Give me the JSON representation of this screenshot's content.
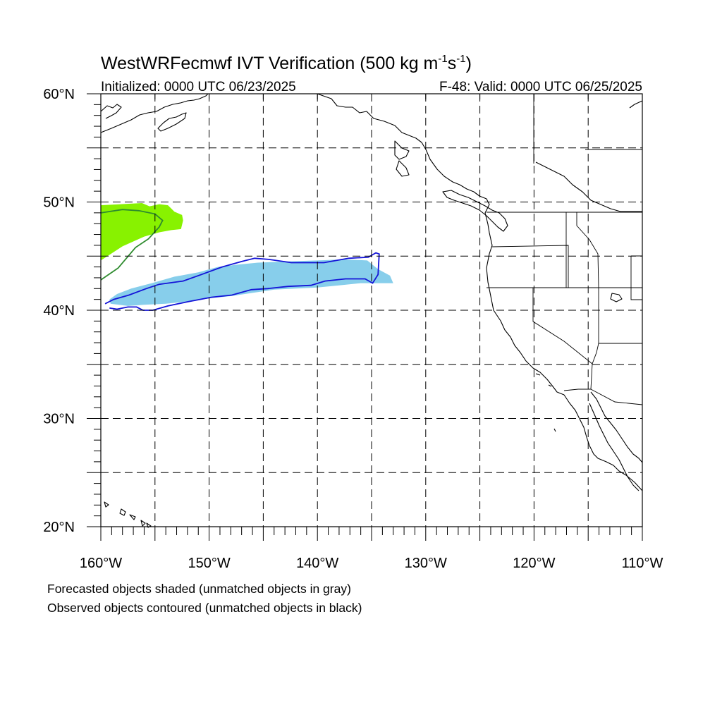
{
  "title": {
    "main": "WestWRFecmwf IVT Verification (500 kg m",
    "exp1": "-1",
    "mid": "s",
    "exp2": "-1",
    "end": ")"
  },
  "subtitle": {
    "left": "Initialized: 0000 UTC 06/23/2025",
    "right": "F-48: Valid: 0000 UTC 06/25/2025"
  },
  "map": {
    "lon_range": [
      -160,
      -110
    ],
    "lat_range": [
      20,
      60
    ],
    "lat_labels": [
      {
        "lat": 60,
        "text": "60°N"
      },
      {
        "lat": 50,
        "text": "50°N"
      },
      {
        "lat": 40,
        "text": "40°N"
      },
      {
        "lat": 30,
        "text": "30°N"
      },
      {
        "lat": 20,
        "text": "20°N"
      }
    ],
    "lon_labels": [
      {
        "lon": -160,
        "text": "160°W"
      },
      {
        "lon": -150,
        "text": "150°W"
      },
      {
        "lon": -140,
        "text": "140°W"
      },
      {
        "lon": -130,
        "text": "130°W"
      },
      {
        "lon": -120,
        "text": "120°W"
      },
      {
        "lon": -110,
        "text": "110°W"
      }
    ],
    "gridlines": "dashed every 5 degrees",
    "objects": [
      {
        "kind": "forecast",
        "color": "#88f200",
        "matched_color": "#2e8b2e",
        "shaded": [
          [
            -160,
            49.7
          ],
          [
            -156.2,
            49.9
          ],
          [
            -155.5,
            49.6
          ],
          [
            -154.6,
            49.8
          ],
          [
            -153.8,
            49.7
          ],
          [
            -153.2,
            49.1
          ],
          [
            -152.5,
            48.8
          ],
          [
            -152.4,
            48.3
          ],
          [
            -152.6,
            47.5
          ],
          [
            -153.5,
            47.4
          ],
          [
            -154.6,
            47.2
          ],
          [
            -156,
            46.8
          ],
          [
            -158,
            45.9
          ],
          [
            -160,
            44.6
          ]
        ],
        "contour": [
          [
            -160,
            49.0
          ],
          [
            -158,
            49.3
          ],
          [
            -156.5,
            49.2
          ],
          [
            -155,
            48.9
          ],
          [
            -154.3,
            48.3
          ],
          [
            -154.6,
            47.7
          ],
          [
            -155.6,
            46.6
          ],
          [
            -156.8,
            45.8
          ],
          [
            -158.4,
            43.9
          ],
          [
            -160,
            42.8
          ]
        ]
      },
      {
        "kind": "forecast",
        "color": "#87ceeb",
        "matched_color": "#1414d8",
        "shaded": [
          [
            -159.2,
            41.0
          ],
          [
            -158.5,
            41.5
          ],
          [
            -157.2,
            42.0
          ],
          [
            -155.3,
            42.5
          ],
          [
            -153.2,
            43.1
          ],
          [
            -151,
            43.5
          ],
          [
            -149.2,
            44.0
          ],
          [
            -147.5,
            44.2
          ],
          [
            -145.5,
            44.4
          ],
          [
            -143,
            44.5
          ],
          [
            -140,
            44.6
          ],
          [
            -137.5,
            44.7
          ],
          [
            -135.4,
            44.6
          ],
          [
            -134.4,
            43.8
          ],
          [
            -133.3,
            43.2
          ],
          [
            -133.0,
            42.5
          ],
          [
            -134.5,
            42.5
          ],
          [
            -136,
            42.5
          ],
          [
            -138,
            42.3
          ],
          [
            -140,
            42.1
          ],
          [
            -142,
            42.0
          ],
          [
            -144,
            41.9
          ],
          [
            -146,
            41.6
          ],
          [
            -148,
            41.3
          ],
          [
            -150,
            41.1
          ],
          [
            -152,
            40.8
          ],
          [
            -154,
            40.6
          ],
          [
            -156,
            40.5
          ],
          [
            -157.5,
            40.4
          ],
          [
            -159.1,
            40.6
          ]
        ],
        "contour": [
          [
            -159.6,
            40.6
          ],
          [
            -158.8,
            41.0
          ],
          [
            -157.4,
            41.4
          ],
          [
            -155.8,
            42.0
          ],
          [
            -154.6,
            42.4
          ],
          [
            -152.4,
            42.7
          ],
          [
            -150.7,
            43.3
          ],
          [
            -148.8,
            44.0
          ],
          [
            -147,
            44.5
          ],
          [
            -145.8,
            44.8
          ],
          [
            -144.5,
            44.7
          ],
          [
            -142.4,
            44.4
          ],
          [
            -140.8,
            44.4
          ],
          [
            -139.4,
            44.4
          ],
          [
            -137.1,
            44.8
          ],
          [
            -135.3,
            44.9
          ],
          [
            -134.6,
            45.3
          ],
          [
            -134.3,
            45.2
          ],
          [
            -134.4,
            43.3
          ],
          [
            -134.9,
            42.5
          ],
          [
            -135.6,
            42.9
          ],
          [
            -137.4,
            42.9
          ],
          [
            -139.3,
            42.7
          ],
          [
            -140.6,
            42.3
          ],
          [
            -142.7,
            42.2
          ],
          [
            -144.6,
            42.0
          ],
          [
            -146.1,
            41.9
          ],
          [
            -147.9,
            41.4
          ],
          [
            -149.8,
            41.2
          ],
          [
            -151.9,
            40.8
          ],
          [
            -153.8,
            40.4
          ],
          [
            -155.2,
            40.0
          ],
          [
            -156.1,
            40.0
          ],
          [
            -156.7,
            40.3
          ],
          [
            -157.5,
            40.3
          ],
          [
            -158.5,
            40.1
          ],
          [
            -159.2,
            40.2
          ]
        ]
      }
    ]
  },
  "footnotes": {
    "line1": "Forecasted objects shaded (unmatched objects in gray)",
    "line2": "Observed objects contoured (unmatched objects in black)"
  }
}
